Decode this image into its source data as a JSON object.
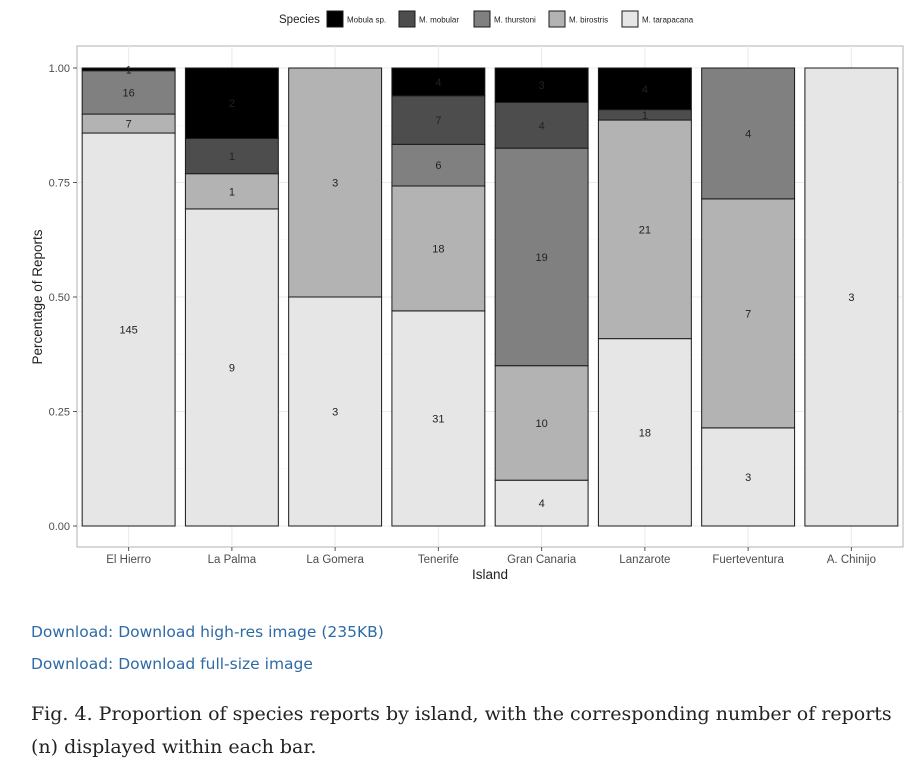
{
  "chart_data": {
    "type": "bar",
    "stacked": true,
    "normalized": true,
    "xlabel": "Island",
    "ylabel": "Percentage of Reports",
    "ylim": [
      0,
      1
    ],
    "yticks": [
      "0.00",
      "0.25",
      "0.50",
      "0.75",
      "1.00"
    ],
    "grid": true,
    "legend_position": "top",
    "legend_title": "Species",
    "categories": [
      "El Hierro",
      "La Palma",
      "La Gomera",
      "Tenerife",
      "Gran Canaria",
      "Lanzarote",
      "Fuerteventura",
      "A. Chinijo"
    ],
    "series": [
      {
        "name": "M. tarapacana",
        "color": "#e6e6e6",
        "label_color": "#222222",
        "values": [
          145,
          9,
          3,
          31,
          4,
          18,
          3,
          3
        ]
      },
      {
        "name": "M. birostris",
        "color": "#b3b3b3",
        "label_color": "#222222",
        "values": [
          7,
          1,
          3,
          18,
          10,
          21,
          7,
          0
        ]
      },
      {
        "name": "M. thurstoni",
        "color": "#808080",
        "label_color": "#222222",
        "values": [
          16,
          0,
          0,
          6,
          19,
          0,
          4,
          0
        ]
      },
      {
        "name": "M. mobular",
        "color": "#4d4d4d",
        "label_color": "#222222",
        "values": [
          0,
          1,
          0,
          7,
          4,
          1,
          0,
          0
        ]
      },
      {
        "name": "Mobula sp.",
        "color": "#000000",
        "label_color": "#222222",
        "values": [
          1,
          2,
          0,
          4,
          3,
          4,
          0,
          0
        ]
      }
    ]
  },
  "downloads": [
    {
      "label": "Download: Download high-res image (235KB)"
    },
    {
      "label": "Download: Download full-size image"
    }
  ],
  "caption": "Fig. 4. Proportion of species reports by island, with the corresponding number of reports (n) displayed within each bar."
}
